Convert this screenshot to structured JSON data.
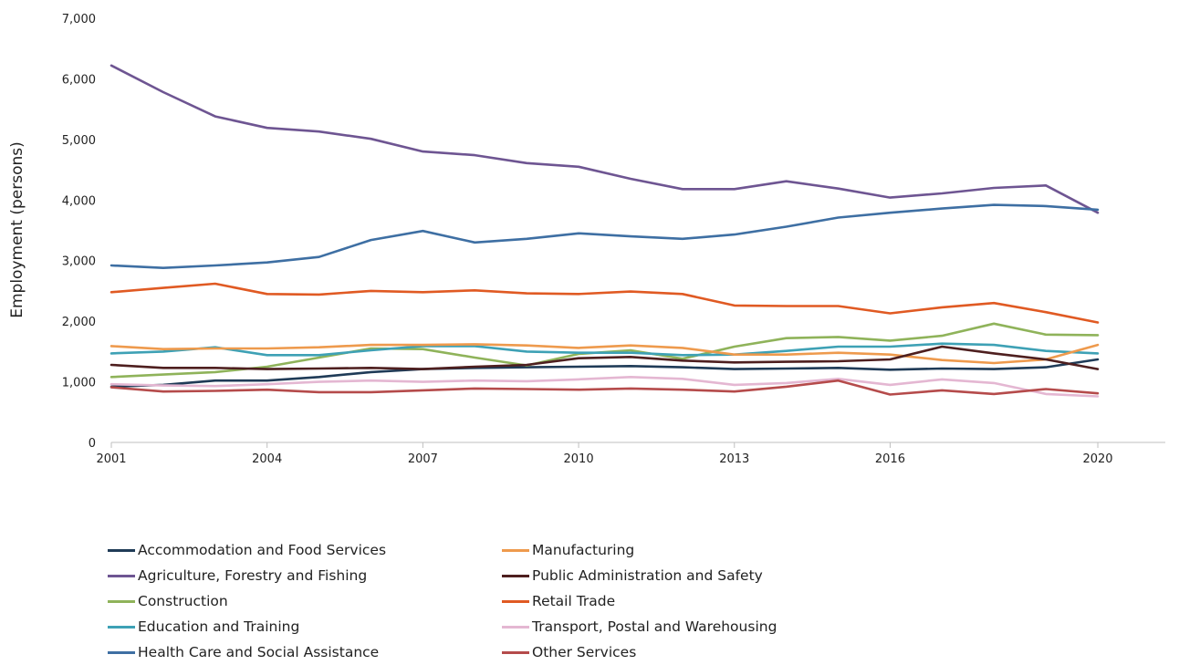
{
  "chart_data": {
    "type": "line",
    "title": "",
    "xlabel": "",
    "ylabel": "Employment (persons)",
    "ylim": [
      0,
      7000
    ],
    "yticks": [
      "0",
      "1,000",
      "2,000",
      "3,000",
      "4,000",
      "5,000",
      "6,000",
      "7,000"
    ],
    "ytick_values": [
      0,
      1000,
      2000,
      3000,
      4000,
      5000,
      6000,
      7000
    ],
    "xticks": [
      "2001",
      "2004",
      "2007",
      "2010",
      "2013",
      "2016",
      "2020"
    ],
    "xtick_values": [
      2001,
      2004,
      2007,
      2010,
      2013,
      2016,
      2020
    ],
    "xlim": [
      2001,
      2021.3
    ],
    "x": [
      2001,
      2002,
      2003,
      2004,
      2005,
      2006,
      2007,
      2008,
      2009,
      2010,
      2011,
      2012,
      2013,
      2014,
      2015,
      2016,
      2017,
      2018,
      2019,
      2020
    ],
    "grid": false,
    "legend_position": "bottom",
    "series": [
      {
        "name": "Accommodation and Food Services",
        "color": "#1f3b57",
        "values": [
          920,
          950,
          1020,
          1020,
          1080,
          1160,
          1210,
          1230,
          1240,
          1250,
          1260,
          1240,
          1210,
          1220,
          1230,
          1200,
          1220,
          1210,
          1240,
          1370
        ]
      },
      {
        "name": "Agriculture, Forestry and Fishing",
        "color": "#6e5592",
        "values": [
          6220,
          5780,
          5380,
          5190,
          5130,
          5010,
          4800,
          4740,
          4610,
          4550,
          4350,
          4180,
          4180,
          4310,
          4190,
          4040,
          4110,
          4200,
          4240,
          3790
        ]
      },
      {
        "name": "Construction",
        "color": "#8fb35a",
        "values": [
          1080,
          1120,
          1160,
          1250,
          1400,
          1550,
          1540,
          1400,
          1270,
          1460,
          1520,
          1380,
          1580,
          1720,
          1740,
          1680,
          1760,
          1960,
          1780,
          1770
        ]
      },
      {
        "name": "Education and Training",
        "color": "#3ea1b5",
        "values": [
          1470,
          1500,
          1570,
          1440,
          1440,
          1520,
          1590,
          1590,
          1500,
          1480,
          1480,
          1440,
          1450,
          1510,
          1580,
          1580,
          1630,
          1610,
          1510,
          1470
        ]
      },
      {
        "name": "Health Care and Social Assistance",
        "color": "#3e6fa3",
        "values": [
          2920,
          2880,
          2920,
          2970,
          3060,
          3340,
          3490,
          3300,
          3360,
          3450,
          3400,
          3360,
          3430,
          3560,
          3710,
          3790,
          3860,
          3920,
          3900,
          3840
        ]
      },
      {
        "name": "Manufacturing",
        "color": "#ee9a4d",
        "values": [
          1590,
          1540,
          1550,
          1550,
          1570,
          1610,
          1610,
          1620,
          1600,
          1560,
          1600,
          1560,
          1450,
          1450,
          1480,
          1450,
          1360,
          1310,
          1370,
          1610
        ]
      },
      {
        "name": "Public Administration and Safety",
        "color": "#4e1f1f",
        "values": [
          1280,
          1230,
          1230,
          1210,
          1220,
          1230,
          1210,
          1250,
          1280,
          1390,
          1410,
          1350,
          1320,
          1330,
          1340,
          1370,
          1580,
          1470,
          1370,
          1210
        ]
      },
      {
        "name": "Retail Trade",
        "color": "#e05a23",
        "values": [
          2480,
          2550,
          2620,
          2450,
          2440,
          2500,
          2480,
          2510,
          2460,
          2450,
          2490,
          2450,
          2260,
          2250,
          2250,
          2130,
          2230,
          2300,
          2150,
          1980
        ]
      },
      {
        "name": "Transport, Postal and Warehousing",
        "color": "#e4b7d2",
        "values": [
          960,
          940,
          930,
          960,
          1000,
          1020,
          1000,
          1020,
          1010,
          1040,
          1080,
          1050,
          950,
          980,
          1050,
          950,
          1040,
          980,
          800,
          760
        ]
      },
      {
        "name": "Other Services",
        "color": "#b54b4b",
        "values": [
          910,
          840,
          850,
          870,
          830,
          830,
          860,
          890,
          880,
          870,
          890,
          870,
          840,
          920,
          1020,
          790,
          860,
          800,
          880,
          810
        ]
      }
    ]
  }
}
